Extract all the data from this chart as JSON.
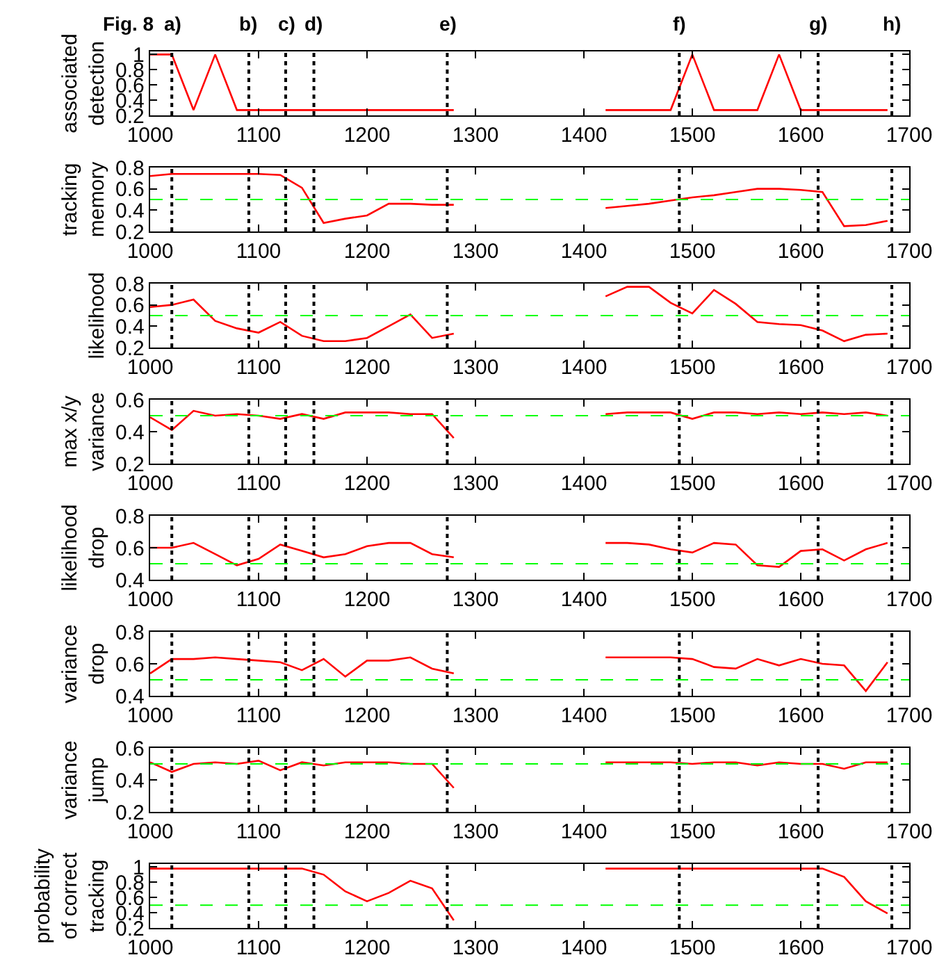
{
  "chart_data": [
    {
      "type": "line",
      "ylabel": "associated\ndetection",
      "annotations": [
        "Fig. 8"
      ],
      "xlim": [
        1000,
        1700
      ],
      "xticks": [
        1000,
        1100,
        1200,
        1300,
        1400,
        1500,
        1600,
        1700
      ],
      "ylim": [
        0.2,
        1.04
      ],
      "yticks": [
        0.2,
        0.4,
        0.6,
        0.8,
        1
      ],
      "series": [
        {
          "color": "#ff0000",
          "x": [
            1000,
            1020,
            1040,
            1060,
            1080,
            1100,
            1120,
            1140,
            1160,
            1180,
            1200,
            1220,
            1240,
            1260,
            1280
          ],
          "values": [
            1,
            1,
            0.27,
            1,
            0.27,
            0.27,
            0.27,
            0.27,
            0.27,
            0.27,
            0.27,
            0.27,
            0.27,
            0.27,
            0.27
          ]
        },
        {
          "color": "#ff0000",
          "x": [
            1420,
            1440,
            1460,
            1480,
            1500,
            1520,
            1540,
            1560,
            1580,
            1600,
            1620,
            1640,
            1660,
            1680
          ],
          "values": [
            0.27,
            0.27,
            0.27,
            0.27,
            1,
            0.27,
            0.27,
            0.27,
            1,
            0.27,
            0.27,
            0.27,
            0.27,
            0.27
          ]
        }
      ],
      "ref_lines": [
        {
          "axis": "x",
          "value": 1020,
          "label": "a)",
          "color": "#000000",
          "line_style": "dotted"
        },
        {
          "axis": "x",
          "value": 1091,
          "label": "b)",
          "color": "#000000",
          "line_style": "dotted"
        },
        {
          "axis": "x",
          "value": 1125,
          "label": "c)",
          "color": "#000000",
          "line_style": "dotted"
        },
        {
          "axis": "x",
          "value": 1151,
          "label": "d)",
          "color": "#000000",
          "line_style": "dotted"
        },
        {
          "axis": "x",
          "value": 1274,
          "label": "e)",
          "color": "#000000",
          "line_style": "dotted"
        },
        {
          "axis": "x",
          "value": 1488,
          "label": "f)",
          "color": "#000000",
          "line_style": "dotted"
        },
        {
          "axis": "x",
          "value": 1616,
          "label": "g)",
          "color": "#000000",
          "line_style": "dotted"
        },
        {
          "axis": "x",
          "value": 1684,
          "label": "h)",
          "color": "#000000",
          "line_style": "dotted"
        }
      ]
    },
    {
      "type": "line",
      "ylabel": "tracking\nmemory",
      "xlim": [
        1000,
        1700
      ],
      "xticks": [
        1000,
        1100,
        1200,
        1300,
        1400,
        1500,
        1600,
        1700
      ],
      "ylim": [
        0.2,
        0.8
      ],
      "yticks": [
        0.2,
        0.4,
        0.6,
        0.8
      ],
      "series": [
        {
          "color": "#ff0000",
          "x": [
            1000,
            1020,
            1040,
            1060,
            1080,
            1100,
            1120,
            1140,
            1160,
            1180,
            1200,
            1220,
            1240,
            1260,
            1280
          ],
          "values": [
            0.72,
            0.74,
            0.74,
            0.74,
            0.74,
            0.74,
            0.73,
            0.61,
            0.28,
            0.32,
            0.35,
            0.46,
            0.46,
            0.45,
            0.45
          ]
        },
        {
          "color": "#ff0000",
          "x": [
            1420,
            1440,
            1460,
            1480,
            1500,
            1520,
            1540,
            1560,
            1580,
            1600,
            1620,
            1640,
            1660,
            1680
          ],
          "values": [
            0.42,
            0.44,
            0.46,
            0.49,
            0.52,
            0.54,
            0.57,
            0.6,
            0.6,
            0.59,
            0.57,
            0.25,
            0.26,
            0.3
          ]
        }
      ],
      "ref_lines": [
        {
          "axis": "y",
          "value": 0.5,
          "color": "#00ff00",
          "line_style": "dashed"
        },
        {
          "axis": "x",
          "value": 1020,
          "color": "#000000",
          "line_style": "dotted"
        },
        {
          "axis": "x",
          "value": 1091,
          "color": "#000000",
          "line_style": "dotted"
        },
        {
          "axis": "x",
          "value": 1125,
          "color": "#000000",
          "line_style": "dotted"
        },
        {
          "axis": "x",
          "value": 1151,
          "color": "#000000",
          "line_style": "dotted"
        },
        {
          "axis": "x",
          "value": 1274,
          "color": "#000000",
          "line_style": "dotted"
        },
        {
          "axis": "x",
          "value": 1488,
          "color": "#000000",
          "line_style": "dotted"
        },
        {
          "axis": "x",
          "value": 1616,
          "color": "#000000",
          "line_style": "dotted"
        },
        {
          "axis": "x",
          "value": 1684,
          "color": "#000000",
          "line_style": "dotted"
        }
      ]
    },
    {
      "type": "line",
      "ylabel": "likelihood",
      "xlim": [
        1000,
        1700
      ],
      "xticks": [
        1000,
        1100,
        1200,
        1300,
        1400,
        1500,
        1600,
        1700
      ],
      "ylim": [
        0.2,
        0.8
      ],
      "yticks": [
        0.2,
        0.4,
        0.6,
        0.8
      ],
      "series": [
        {
          "color": "#ff0000",
          "x": [
            1000,
            1020,
            1040,
            1060,
            1080,
            1100,
            1120,
            1140,
            1160,
            1180,
            1200,
            1220,
            1240,
            1260,
            1280
          ],
          "values": [
            0.58,
            0.6,
            0.65,
            0.45,
            0.38,
            0.34,
            0.44,
            0.31,
            0.26,
            0.26,
            0.29,
            0.4,
            0.51,
            0.29,
            0.33
          ]
        },
        {
          "color": "#ff0000",
          "x": [
            1420,
            1440,
            1460,
            1480,
            1500,
            1520,
            1540,
            1560,
            1580,
            1600,
            1620,
            1640,
            1660,
            1680
          ],
          "values": [
            0.68,
            0.77,
            0.77,
            0.62,
            0.52,
            0.74,
            0.61,
            0.44,
            0.42,
            0.41,
            0.36,
            0.26,
            0.32,
            0.33
          ]
        }
      ],
      "ref_lines": [
        {
          "axis": "y",
          "value": 0.5,
          "color": "#00ff00",
          "line_style": "dashed"
        },
        {
          "axis": "x",
          "value": 1020,
          "color": "#000000",
          "line_style": "dotted"
        },
        {
          "axis": "x",
          "value": 1091,
          "color": "#000000",
          "line_style": "dotted"
        },
        {
          "axis": "x",
          "value": 1125,
          "color": "#000000",
          "line_style": "dotted"
        },
        {
          "axis": "x",
          "value": 1151,
          "color": "#000000",
          "line_style": "dotted"
        },
        {
          "axis": "x",
          "value": 1274,
          "color": "#000000",
          "line_style": "dotted"
        },
        {
          "axis": "x",
          "value": 1488,
          "color": "#000000",
          "line_style": "dotted"
        },
        {
          "axis": "x",
          "value": 1616,
          "color": "#000000",
          "line_style": "dotted"
        },
        {
          "axis": "x",
          "value": 1684,
          "color": "#000000",
          "line_style": "dotted"
        }
      ]
    },
    {
      "type": "line",
      "ylabel": "max x/y\nvariance",
      "xlim": [
        1000,
        1700
      ],
      "xticks": [
        1000,
        1100,
        1200,
        1300,
        1400,
        1500,
        1600,
        1700
      ],
      "ylim": [
        0.2,
        0.6
      ],
      "yticks": [
        0.2,
        0.4,
        0.6
      ],
      "series": [
        {
          "color": "#ff0000",
          "x": [
            1000,
            1020,
            1040,
            1060,
            1080,
            1100,
            1120,
            1140,
            1160,
            1180,
            1200,
            1220,
            1240,
            1260,
            1280
          ],
          "values": [
            0.49,
            0.41,
            0.53,
            0.5,
            0.51,
            0.5,
            0.48,
            0.51,
            0.48,
            0.52,
            0.52,
            0.52,
            0.51,
            0.51,
            0.36
          ]
        },
        {
          "color": "#ff0000",
          "x": [
            1420,
            1440,
            1460,
            1480,
            1500,
            1520,
            1540,
            1560,
            1580,
            1600,
            1620,
            1640,
            1660,
            1680
          ],
          "values": [
            0.51,
            0.52,
            0.52,
            0.52,
            0.48,
            0.52,
            0.52,
            0.51,
            0.52,
            0.51,
            0.52,
            0.51,
            0.52,
            0.5
          ]
        }
      ],
      "ref_lines": [
        {
          "axis": "y",
          "value": 0.5,
          "color": "#00ff00",
          "line_style": "dashed"
        },
        {
          "axis": "x",
          "value": 1020,
          "color": "#000000",
          "line_style": "dotted"
        },
        {
          "axis": "x",
          "value": 1091,
          "color": "#000000",
          "line_style": "dotted"
        },
        {
          "axis": "x",
          "value": 1125,
          "color": "#000000",
          "line_style": "dotted"
        },
        {
          "axis": "x",
          "value": 1151,
          "color": "#000000",
          "line_style": "dotted"
        },
        {
          "axis": "x",
          "value": 1274,
          "color": "#000000",
          "line_style": "dotted"
        },
        {
          "axis": "x",
          "value": 1488,
          "color": "#000000",
          "line_style": "dotted"
        },
        {
          "axis": "x",
          "value": 1616,
          "color": "#000000",
          "line_style": "dotted"
        },
        {
          "axis": "x",
          "value": 1684,
          "color": "#000000",
          "line_style": "dotted"
        }
      ]
    },
    {
      "type": "line",
      "ylabel": "likelihood\ndrop",
      "xlim": [
        1000,
        1700
      ],
      "xticks": [
        1000,
        1100,
        1200,
        1300,
        1400,
        1500,
        1600,
        1700
      ],
      "ylim": [
        0.4,
        0.8
      ],
      "yticks": [
        0.4,
        0.6,
        0.8
      ],
      "series": [
        {
          "color": "#ff0000",
          "x": [
            1000,
            1020,
            1040,
            1060,
            1080,
            1100,
            1120,
            1140,
            1160,
            1180,
            1200,
            1220,
            1240,
            1260,
            1280
          ],
          "values": [
            0.6,
            0.6,
            0.63,
            0.56,
            0.49,
            0.53,
            0.62,
            0.58,
            0.54,
            0.56,
            0.61,
            0.63,
            0.63,
            0.56,
            0.54
          ]
        },
        {
          "color": "#ff0000",
          "x": [
            1420,
            1440,
            1460,
            1480,
            1500,
            1520,
            1540,
            1560,
            1580,
            1600,
            1620,
            1640,
            1660,
            1680
          ],
          "values": [
            0.63,
            0.63,
            0.62,
            0.59,
            0.57,
            0.63,
            0.62,
            0.49,
            0.48,
            0.58,
            0.59,
            0.52,
            0.59,
            0.63
          ]
        }
      ],
      "ref_lines": [
        {
          "axis": "y",
          "value": 0.5,
          "color": "#00ff00",
          "line_style": "dashed"
        },
        {
          "axis": "x",
          "value": 1020,
          "color": "#000000",
          "line_style": "dotted"
        },
        {
          "axis": "x",
          "value": 1091,
          "color": "#000000",
          "line_style": "dotted"
        },
        {
          "axis": "x",
          "value": 1125,
          "color": "#000000",
          "line_style": "dotted"
        },
        {
          "axis": "x",
          "value": 1151,
          "color": "#000000",
          "line_style": "dotted"
        },
        {
          "axis": "x",
          "value": 1274,
          "color": "#000000",
          "line_style": "dotted"
        },
        {
          "axis": "x",
          "value": 1488,
          "color": "#000000",
          "line_style": "dotted"
        },
        {
          "axis": "x",
          "value": 1616,
          "color": "#000000",
          "line_style": "dotted"
        },
        {
          "axis": "x",
          "value": 1684,
          "color": "#000000",
          "line_style": "dotted"
        }
      ]
    },
    {
      "type": "line",
      "ylabel": "variance\ndrop",
      "xlim": [
        1000,
        1700
      ],
      "xticks": [
        1000,
        1100,
        1200,
        1300,
        1400,
        1500,
        1600,
        1700
      ],
      "ylim": [
        0.4,
        0.8
      ],
      "yticks": [
        0.4,
        0.6,
        0.8
      ],
      "series": [
        {
          "color": "#ff0000",
          "x": [
            1000,
            1020,
            1040,
            1060,
            1080,
            1100,
            1120,
            1140,
            1160,
            1180,
            1200,
            1220,
            1240,
            1260,
            1280
          ],
          "values": [
            0.54,
            0.63,
            0.63,
            0.64,
            0.63,
            0.62,
            0.61,
            0.56,
            0.63,
            0.52,
            0.62,
            0.62,
            0.64,
            0.57,
            0.54
          ]
        },
        {
          "color": "#ff0000",
          "x": [
            1420,
            1440,
            1460,
            1480,
            1500,
            1520,
            1540,
            1560,
            1580,
            1600,
            1620,
            1640,
            1660,
            1680
          ],
          "values": [
            0.64,
            0.64,
            0.64,
            0.64,
            0.63,
            0.58,
            0.57,
            0.63,
            0.59,
            0.63,
            0.6,
            0.59,
            0.43,
            0.61
          ]
        }
      ],
      "ref_lines": [
        {
          "axis": "y",
          "value": 0.5,
          "color": "#00ff00",
          "line_style": "dashed"
        },
        {
          "axis": "x",
          "value": 1020,
          "color": "#000000",
          "line_style": "dotted"
        },
        {
          "axis": "x",
          "value": 1091,
          "color": "#000000",
          "line_style": "dotted"
        },
        {
          "axis": "x",
          "value": 1125,
          "color": "#000000",
          "line_style": "dotted"
        },
        {
          "axis": "x",
          "value": 1151,
          "color": "#000000",
          "line_style": "dotted"
        },
        {
          "axis": "x",
          "value": 1274,
          "color": "#000000",
          "line_style": "dotted"
        },
        {
          "axis": "x",
          "value": 1488,
          "color": "#000000",
          "line_style": "dotted"
        },
        {
          "axis": "x",
          "value": 1616,
          "color": "#000000",
          "line_style": "dotted"
        },
        {
          "axis": "x",
          "value": 1684,
          "color": "#000000",
          "line_style": "dotted"
        }
      ]
    },
    {
      "type": "line",
      "ylabel": "variance\njump",
      "xlim": [
        1000,
        1700
      ],
      "xticks": [
        1000,
        1100,
        1200,
        1300,
        1400,
        1500,
        1600,
        1700
      ],
      "ylim": [
        0.2,
        0.6
      ],
      "yticks": [
        0.2,
        0.4,
        0.6
      ],
      "series": [
        {
          "color": "#ff0000",
          "x": [
            1000,
            1020,
            1040,
            1060,
            1080,
            1100,
            1120,
            1140,
            1160,
            1180,
            1200,
            1220,
            1240,
            1260,
            1280
          ],
          "values": [
            0.51,
            0.45,
            0.5,
            0.51,
            0.5,
            0.52,
            0.46,
            0.51,
            0.49,
            0.51,
            0.51,
            0.51,
            0.5,
            0.5,
            0.35
          ]
        },
        {
          "color": "#ff0000",
          "x": [
            1420,
            1440,
            1460,
            1480,
            1500,
            1520,
            1540,
            1560,
            1580,
            1600,
            1620,
            1640,
            1660,
            1680
          ],
          "values": [
            0.51,
            0.51,
            0.51,
            0.51,
            0.5,
            0.51,
            0.51,
            0.49,
            0.51,
            0.5,
            0.5,
            0.47,
            0.51,
            0.51
          ]
        }
      ],
      "ref_lines": [
        {
          "axis": "y",
          "value": 0.5,
          "color": "#00ff00",
          "line_style": "dashed"
        },
        {
          "axis": "x",
          "value": 1020,
          "color": "#000000",
          "line_style": "dotted"
        },
        {
          "axis": "x",
          "value": 1091,
          "color": "#000000",
          "line_style": "dotted"
        },
        {
          "axis": "x",
          "value": 1125,
          "color": "#000000",
          "line_style": "dotted"
        },
        {
          "axis": "x",
          "value": 1151,
          "color": "#000000",
          "line_style": "dotted"
        },
        {
          "axis": "x",
          "value": 1274,
          "color": "#000000",
          "line_style": "dotted"
        },
        {
          "axis": "x",
          "value": 1488,
          "color": "#000000",
          "line_style": "dotted"
        },
        {
          "axis": "x",
          "value": 1616,
          "color": "#000000",
          "line_style": "dotted"
        },
        {
          "axis": "x",
          "value": 1684,
          "color": "#000000",
          "line_style": "dotted"
        }
      ]
    },
    {
      "type": "line",
      "ylabel": "probability\nof correct\ntracking",
      "xlim": [
        1000,
        1700
      ],
      "xticks": [
        1000,
        1100,
        1200,
        1300,
        1400,
        1500,
        1600,
        1700
      ],
      "ylim": [
        0.2,
        1.04
      ],
      "yticks": [
        0.2,
        0.4,
        0.6,
        0.8,
        1
      ],
      "series": [
        {
          "color": "#ff0000",
          "x": [
            1000,
            1020,
            1040,
            1060,
            1080,
            1100,
            1120,
            1140,
            1160,
            1180,
            1200,
            1220,
            1240,
            1260,
            1280
          ],
          "values": [
            0.98,
            0.98,
            0.98,
            0.98,
            0.98,
            0.98,
            0.98,
            0.98,
            0.9,
            0.68,
            0.55,
            0.66,
            0.82,
            0.72,
            0.3
          ]
        },
        {
          "color": "#ff0000",
          "x": [
            1420,
            1440,
            1460,
            1480,
            1500,
            1520,
            1540,
            1560,
            1580,
            1600,
            1620,
            1640,
            1660,
            1680
          ],
          "values": [
            0.98,
            0.98,
            0.98,
            0.98,
            0.98,
            0.98,
            0.98,
            0.98,
            0.98,
            0.98,
            0.98,
            0.87,
            0.55,
            0.39
          ]
        }
      ],
      "ref_lines": [
        {
          "axis": "y",
          "value": 0.5,
          "color": "#00ff00",
          "line_style": "dashed"
        },
        {
          "axis": "x",
          "value": 1020,
          "color": "#000000",
          "line_style": "dotted"
        },
        {
          "axis": "x",
          "value": 1091,
          "color": "#000000",
          "line_style": "dotted"
        },
        {
          "axis": "x",
          "value": 1125,
          "color": "#000000",
          "line_style": "dotted"
        },
        {
          "axis": "x",
          "value": 1151,
          "color": "#000000",
          "line_style": "dotted"
        },
        {
          "axis": "x",
          "value": 1274,
          "color": "#000000",
          "line_style": "dotted"
        },
        {
          "axis": "x",
          "value": 1488,
          "color": "#000000",
          "line_style": "dotted"
        },
        {
          "axis": "x",
          "value": 1616,
          "color": "#000000",
          "line_style": "dotted"
        },
        {
          "axis": "x",
          "value": 1684,
          "color": "#000000",
          "line_style": "dotted"
        }
      ]
    }
  ]
}
